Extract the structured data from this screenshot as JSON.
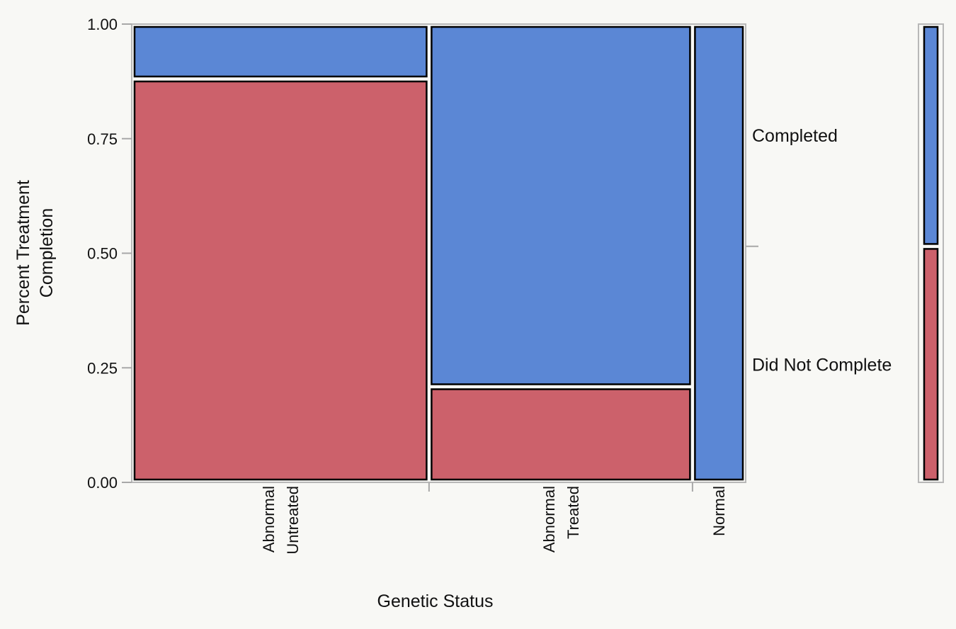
{
  "chart_data": {
    "type": "mosaic",
    "xlabel": "Genetic Status",
    "ylabel_lines": [
      "Percent Treatment",
      "Completion"
    ],
    "ylim": [
      0,
      1
    ],
    "yticks": [
      "0.00",
      "0.25",
      "0.50",
      "0.75",
      "1.00"
    ],
    "categories": [
      {
        "label_lines": [
          "Abnormal",
          "Untreated"
        ],
        "width_share": 0.488
      },
      {
        "label_lines": [
          "Abnormal",
          "Treated"
        ],
        "width_share": 0.432
      },
      {
        "label_lines": [
          "Normal"
        ],
        "width_share": 0.08
      }
    ],
    "series": [
      {
        "name": "Did Not Complete",
        "color": "#cc616b",
        "values": [
          0.885,
          0.205,
          0.0
        ]
      },
      {
        "name": "Completed",
        "color": "#5b87d5",
        "values": [
          0.115,
          0.795,
          1.0
        ]
      }
    ],
    "legend": {
      "placement": "right",
      "labels": [
        "Completed",
        "Did Not Complete"
      ],
      "overall_split": 0.515
    },
    "colors": {
      "frame": "#b8b8b8",
      "tile_border": "#000000",
      "tick": "#a8a8a8"
    }
  }
}
